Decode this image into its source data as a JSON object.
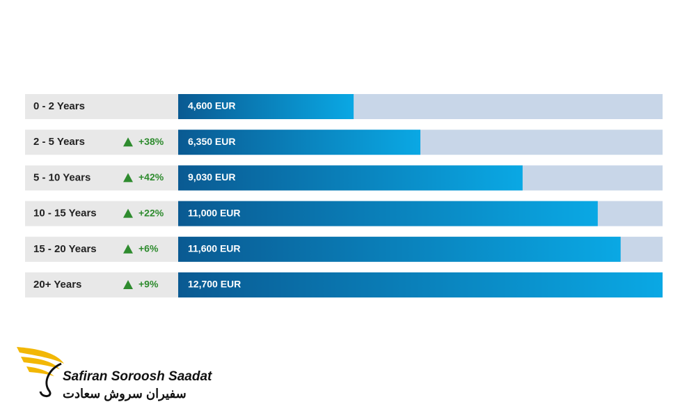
{
  "chart_data": {
    "type": "hbar",
    "categories": [
      "0 - 2 Years",
      "2 - 5 Years",
      "5 - 10 Years",
      "10 - 15 Years",
      "15 - 20 Years",
      "20+ Years"
    ],
    "values": [
      4600,
      6350,
      9030,
      11000,
      11600,
      12700
    ],
    "value_labels": [
      "4,600 EUR",
      "6,350 EUR",
      "9,030 EUR",
      "11,000 EUR",
      "11,600 EUR",
      "12,700 EUR"
    ],
    "changes": [
      null,
      38,
      42,
      22,
      6,
      9
    ],
    "change_labels": [
      null,
      "+38%",
      "+42%",
      "+22%",
      "+6%",
      "+9%"
    ],
    "color": "#0b6aa6"
  },
  "logo": {
    "name": "Safiran Soroosh Saadat",
    "name_fa": "سفیران سروش سعادت"
  }
}
